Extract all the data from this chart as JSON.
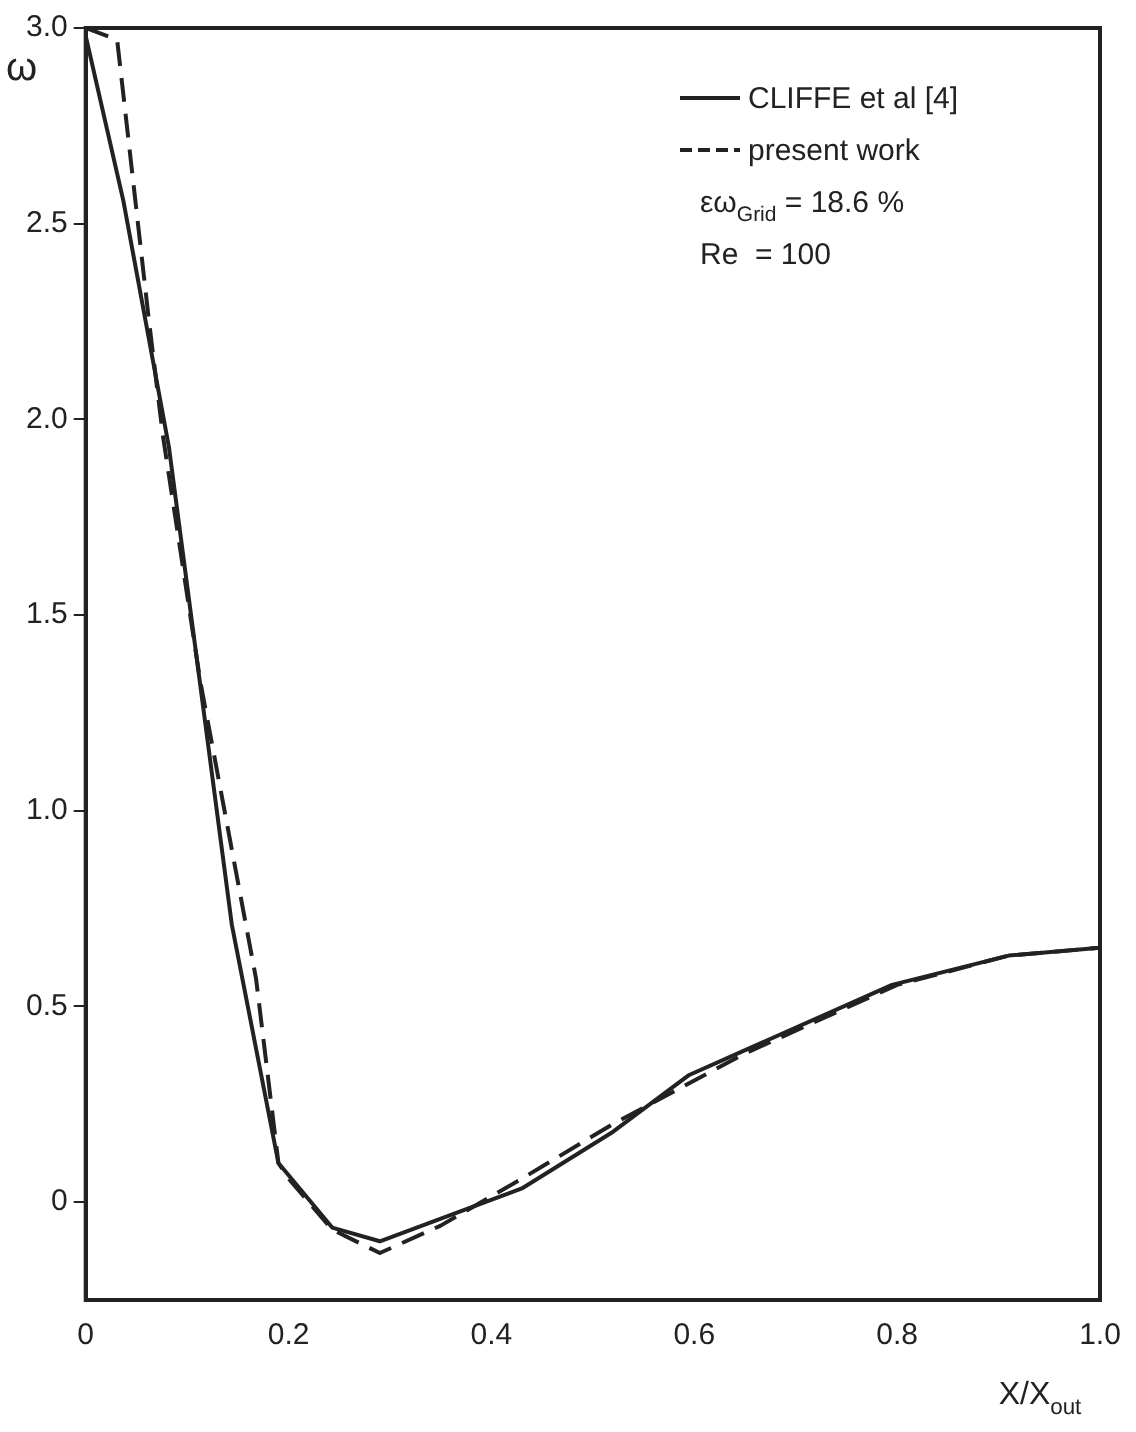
{
  "chart_data": {
    "type": "line",
    "xlabel": "X/X$_{out}$",
    "ylabel": "ω",
    "series": [
      {
        "name": "CLIFFE et al [4]",
        "color": "#222222",
        "line_style": "solid",
        "x": [
          0,
          0.037,
          0.082,
          0.144,
          0.19,
          0.243,
          0.29,
          0.43,
          0.52,
          0.595,
          0.795,
          0.91,
          1.0
        ],
        "values": [
          2.98,
          2.56,
          1.93,
          0.71,
          0.1,
          -0.065,
          -0.1,
          0.035,
          0.18,
          0.325,
          0.555,
          0.63,
          0.65
        ]
      },
      {
        "name": "present work",
        "color": "#222222",
        "line_style": "dashed",
        "x": [
          0,
          0.031,
          0.062,
          0.076,
          0.113,
          0.168,
          0.19,
          0.2,
          0.243,
          0.29,
          0.35,
          0.43,
          0.52,
          0.65,
          0.8,
          0.91,
          1.0
        ],
        "values": [
          3.0,
          2.97,
          2.26,
          1.96,
          1.33,
          0.57,
          0.1,
          0.06,
          -0.07,
          -0.13,
          -0.06,
          0.06,
          0.2,
          0.38,
          0.555,
          0.63,
          0.65
        ]
      }
    ],
    "xlim": [
      0,
      1.0
    ],
    "ylim": [
      -0.25,
      3.0
    ],
    "xticks": [
      0,
      0.2,
      0.4,
      0.6,
      0.8,
      {
        "value": 1,
        "label": "1.0"
      }
    ],
    "yticks": [
      0,
      0.5,
      {
        "value": 1,
        "label": "1.0"
      },
      1.5,
      {
        "value": 2,
        "label": "2.0"
      },
      2.5,
      {
        "value": 3,
        "label": "3.0"
      }
    ],
    "legend": "top right",
    "grid": false,
    "marker": "none",
    "annotations": [
      "εω$_{Grid}$ = 18.6 %",
      "Re  = 100"
    ]
  }
}
